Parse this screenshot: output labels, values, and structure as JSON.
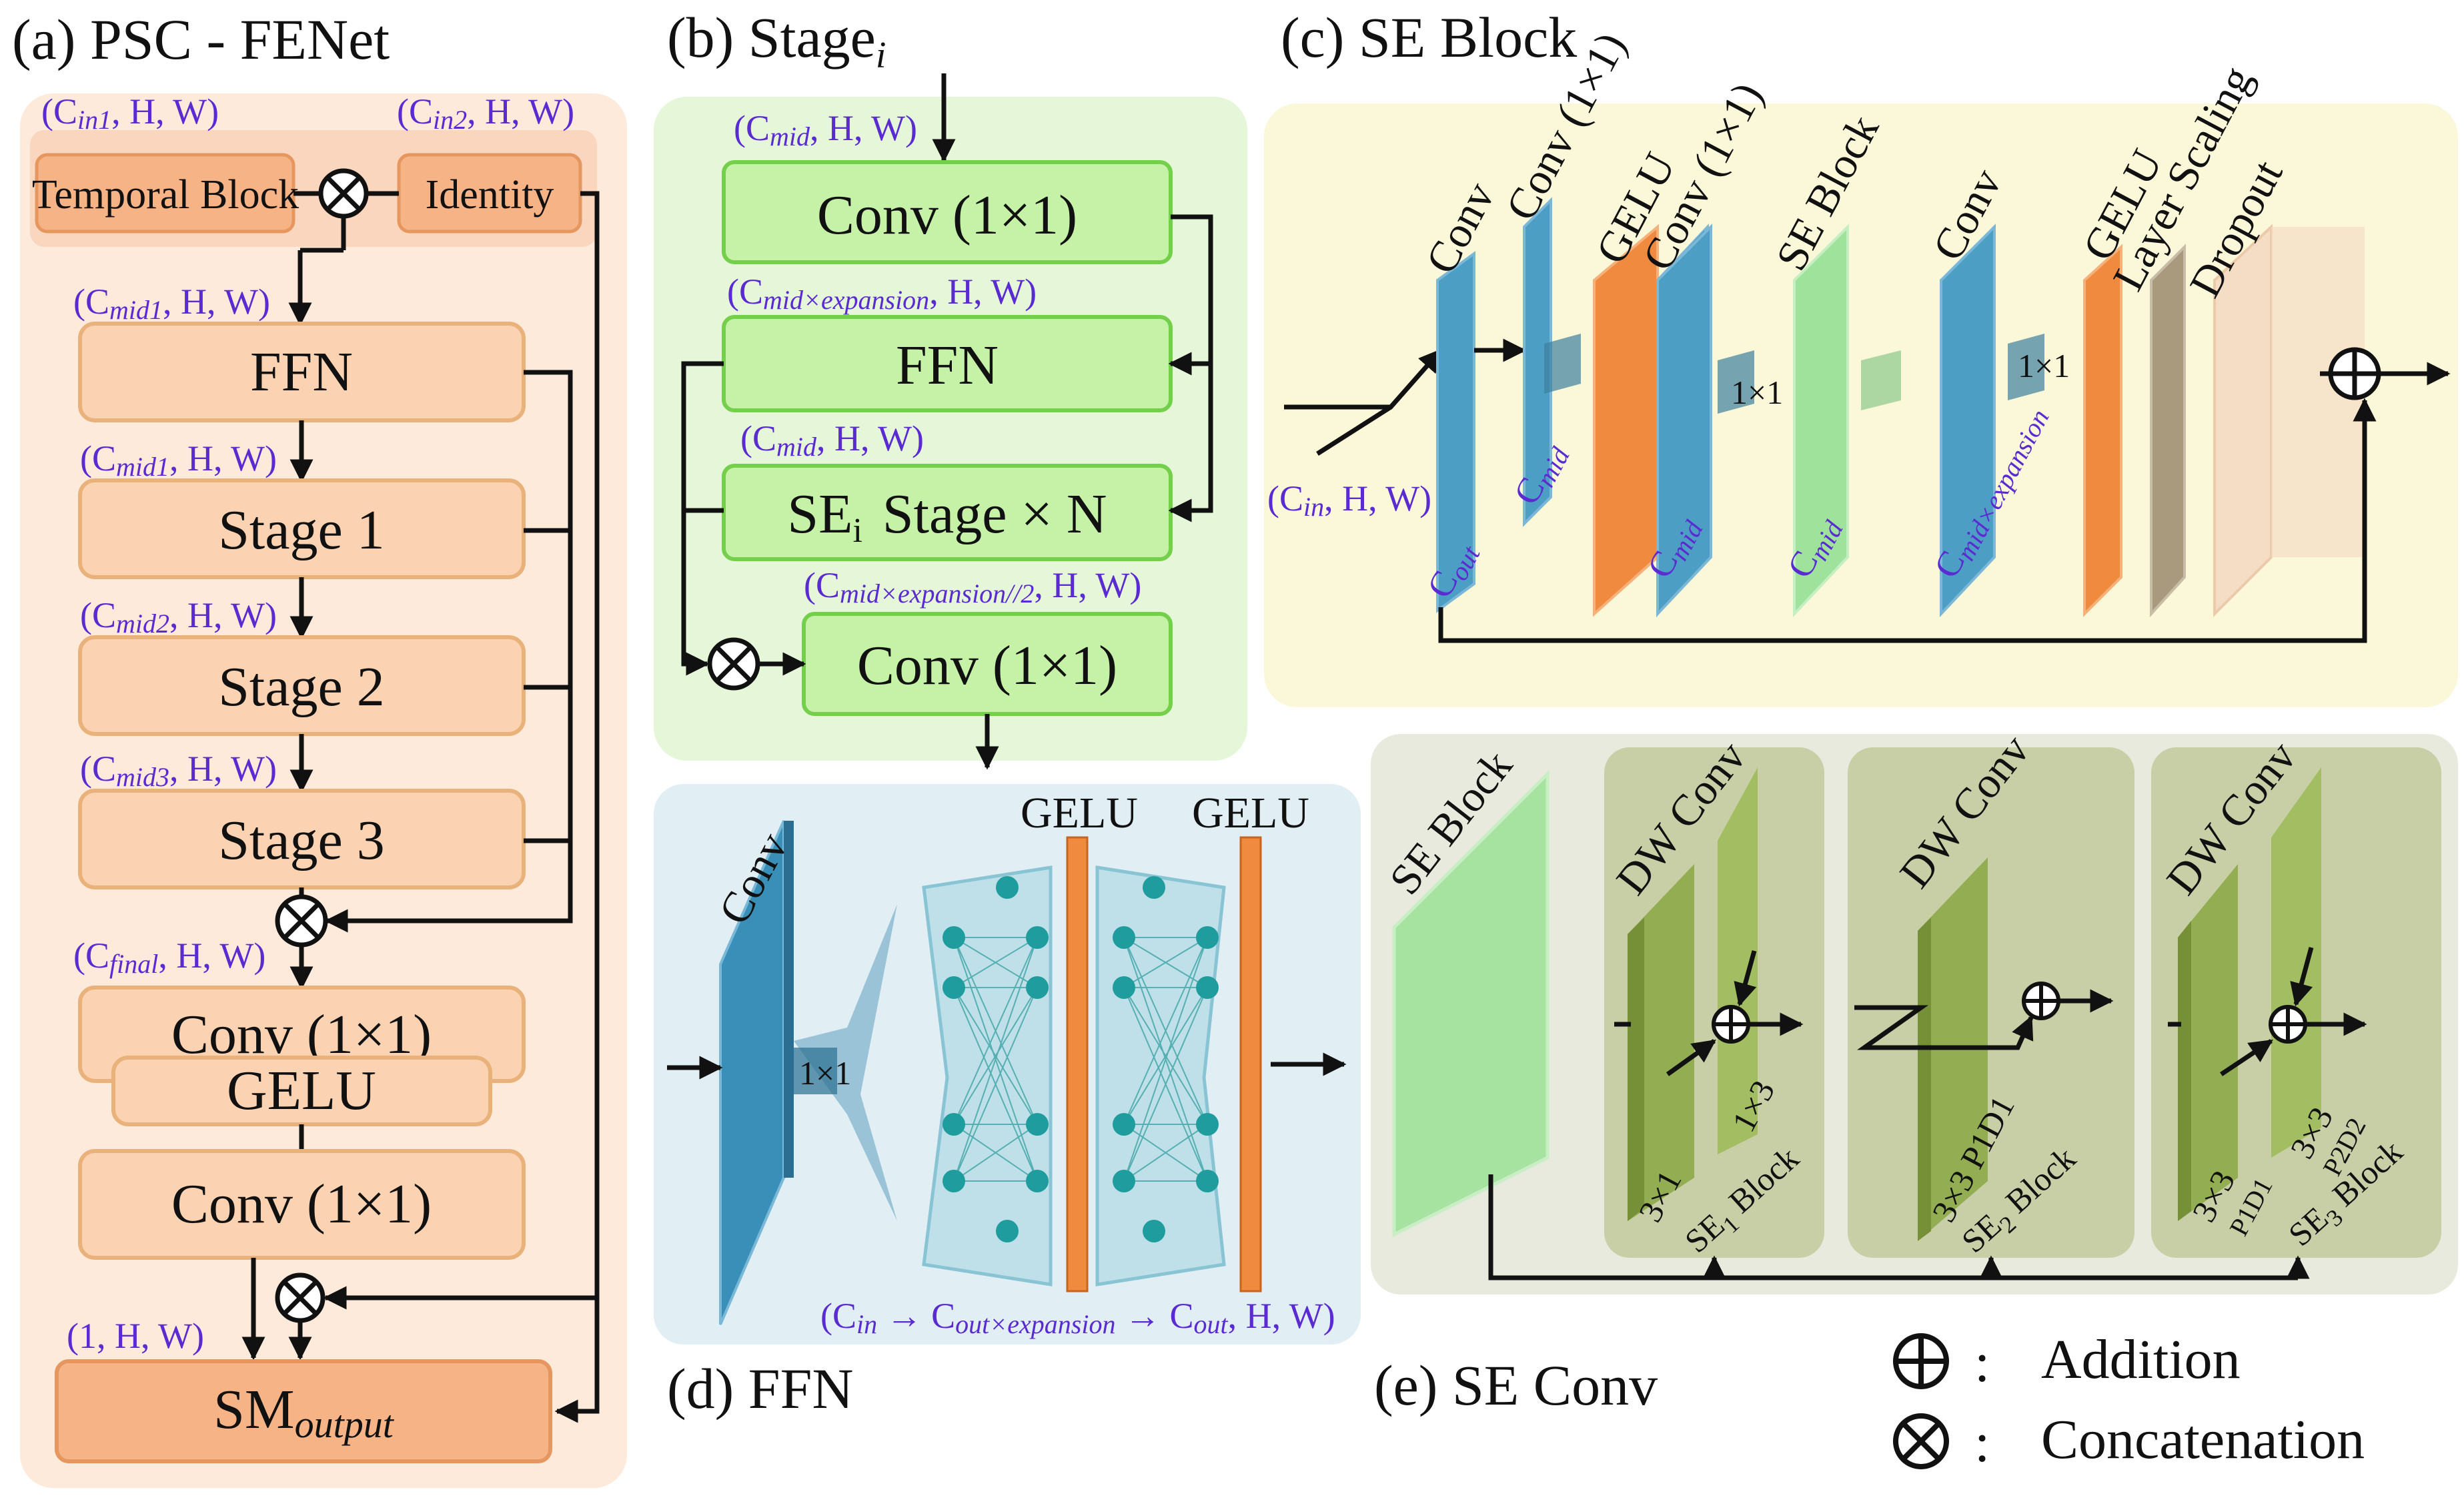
{
  "panel_a": {
    "title": "(a)  PSC - FENet",
    "in1_dim": "(C",
    "in1_sub": "in1",
    "in1_tail": ", H, W)",
    "in2_dim": "(C",
    "in2_sub": "in2",
    "in2_tail": ", H, W)",
    "temporal_block": "Temporal Block",
    "identity": "Identity",
    "dims": [
      {
        "pre": "(C",
        "sub": "mid1",
        "post": ", H, W)"
      },
      {
        "pre": "(C",
        "sub": "mid1",
        "post": ", H, W)"
      },
      {
        "pre": "(C",
        "sub": "mid2",
        "post": ", H, W)"
      },
      {
        "pre": "(C",
        "sub": "mid3",
        "post": ", H, W)"
      },
      {
        "pre": "(C",
        "sub": "final",
        "post": ", H, W)"
      }
    ],
    "ffn": "FFN",
    "stage1": "Stage 1",
    "stage2": "Stage 2",
    "stage3": "Stage 3",
    "conv1": "Conv (1×1)",
    "gelu": "GELU",
    "conv2": "Conv (1×1)",
    "out_dim": "(1, H, W)",
    "output_main": "SM",
    "output_sub": "output"
  },
  "panel_b": {
    "title": "(b)  Stage",
    "title_sub": "i",
    "dim1_pre": "(C",
    "dim1_sub": "mid",
    "dim1_post": ", H, W)",
    "conv1": "Conv (1×1)",
    "dim2_pre": "(C",
    "dim2_sub": "mid×expansion",
    "dim2_post": ", H, W)",
    "ffn": "FFN",
    "dim3_pre": "(C",
    "dim3_sub": "mid",
    "dim3_post": ", H, W)",
    "se_main": "SE",
    "se_sub": "i",
    "se_tail": "Stage × N",
    "dim4_pre": "(C",
    "dim4_sub": "mid×expansion//2",
    "dim4_post": ", H, W)",
    "conv2": "Conv (1×1)"
  },
  "panel_c": {
    "title": "(c)  SE Block",
    "layers": [
      "Conv",
      "Conv (1×1)",
      "GELU",
      "Conv (1×1)",
      "SE Block",
      "Conv",
      "GELU",
      "Layer Scaling",
      "Dropout"
    ],
    "ch_out": "C",
    "ch_out_sub": "out",
    "ch_mid1": "C",
    "ch_mid1_sub": "mid",
    "ch_mid2": "C",
    "ch_mid2_sub": "mid",
    "ch_mid3": "C",
    "ch_mid3_sub": "mid",
    "ch_exp": "C",
    "ch_exp_sub": "mid×expansion",
    "kernel1": "1×1",
    "kernel2": "1×1",
    "in_dim_pre": "(C",
    "in_dim_sub": "in",
    "in_dim_post": ", H, W)"
  },
  "panel_d": {
    "title": "(d)  FFN",
    "conv": "Conv",
    "kernel": "1×1",
    "gelu1": "GELU",
    "gelu2": "GELU",
    "dim_pre": "(C",
    "dim_sub1": "in",
    "dim_arrow1": " → C",
    "dim_sub2": "out×expansion",
    "dim_arrow2": " → C",
    "dim_sub3": "out",
    "dim_post": ", H, W)"
  },
  "panel_e": {
    "title": "(e)  SE Conv",
    "se_block": "SE Block",
    "dw1": "DW Conv",
    "dw2": "DW Conv",
    "dw3": "DW Conv",
    "k31": "3×1",
    "k13": "1×3",
    "se1_main": "SE",
    "se1_sub": "1",
    "se1_tail": " Block",
    "k33_p1d1": "3×3  P1D1",
    "se2_main": "SE",
    "se2_sub": "2",
    "se2_tail": " Block",
    "k33a": "3×3",
    "p1d1": "P1D1",
    "k33b": "3×3",
    "p2d2": "P2D2",
    "se3_main": "SE",
    "se3_sub": "3",
    "se3_tail": " Block"
  },
  "legend": {
    "addition": "Addition",
    "concatenation": "Concatenation",
    "colon": ":"
  },
  "colors": {
    "panel_a_bg": "#fdeadb",
    "box_orange": "#fbd3b2",
    "box_orange_border": "#e9b27a",
    "panel_b_bg": "#e5f7d8",
    "box_green": "#c6f2a8",
    "box_green_border": "#74cf4b",
    "panel_c_bg": "#fbf7d9",
    "conv_blue": "#4d9ec4",
    "gelu_orange": "#f08a3e",
    "se_green": "#9ee29c",
    "scaling_tan": "#a99a7d",
    "dropout_peach": "#f4dcc5",
    "panel_d_bg": "#e1eef4",
    "panel_e_bg": "#e7eadc",
    "dw_green": "#92ad52",
    "dim_purple": "#5a2bd1"
  }
}
